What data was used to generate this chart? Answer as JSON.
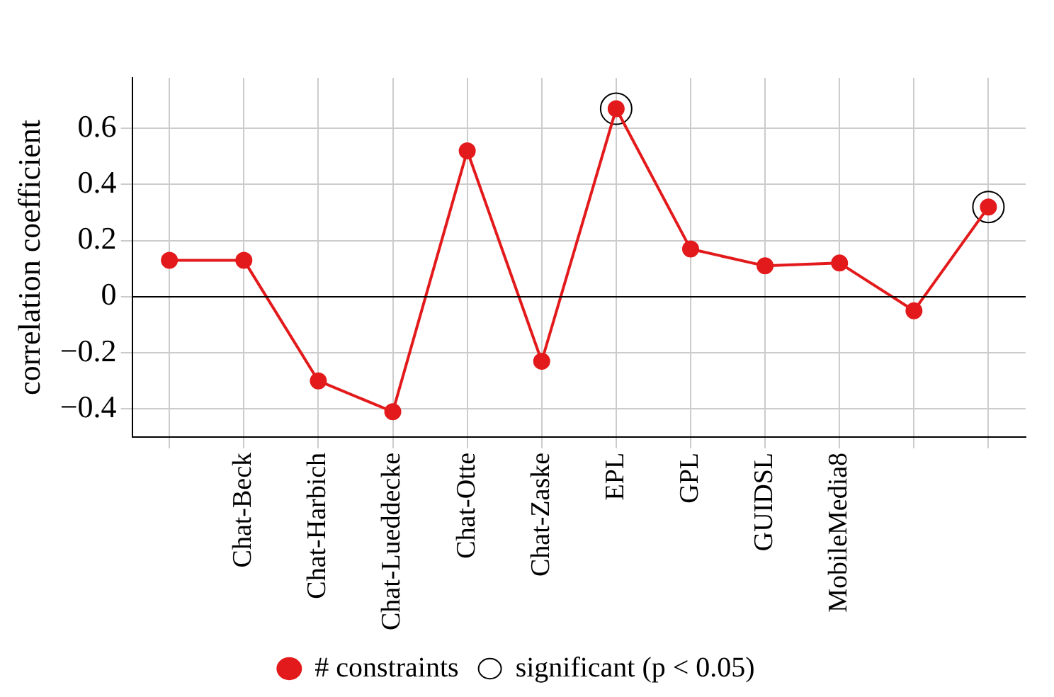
{
  "chart_data": {
    "type": "line",
    "ylabel": "correlation coefficient",
    "categories": [
      null,
      "Chat-Beck",
      "Chat-Harbich",
      "Chat-Lueddecke",
      "Chat-Otte",
      "Chat-Zaske",
      "EPL",
      "GPL",
      "GUIDSL",
      "MobileMedia8",
      null,
      null
    ],
    "series": [
      {
        "name": "# constraints",
        "color": "#e31a1c",
        "type": "line",
        "marker": "circle",
        "values": [
          0.13,
          0.13,
          -0.3,
          -0.41,
          0.52,
          -0.23,
          0.67,
          0.17,
          0.11,
          0.12,
          -0.05,
          0.32
        ]
      },
      {
        "name": "significant (p < 0.05)",
        "color": "#000000",
        "type": "scatter",
        "marker": "circle",
        "values": [
          null,
          null,
          null,
          null,
          null,
          null,
          0.67,
          null,
          null,
          null,
          null,
          0.32
        ]
      }
    ],
    "ylim": [
      -0.5,
      0.78
    ],
    "yticks": [
      -0.4,
      -0.2,
      0,
      0.2,
      0.4,
      0.6
    ],
    "grid": true,
    "legend": "bottom",
    "ref_lines": [
      {
        "axis": "y",
        "value": 0,
        "color": "#000000"
      }
    ]
  }
}
